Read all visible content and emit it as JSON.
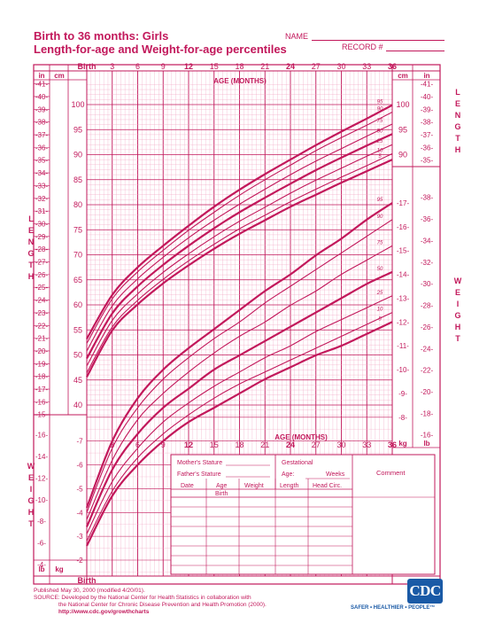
{
  "header": {
    "title_line1": "Birth to 36 months: Girls",
    "title_line2": "Length-for-age and Weight-for-age percentiles",
    "name_label": "NAME",
    "record_label": "RECORD #"
  },
  "labels": {
    "birth": "Birth",
    "cm": "cm",
    "in": "in",
    "kg": "kg",
    "lb": "lb",
    "age_months": "AGE (MONTHS)",
    "length_word": "LENGTH",
    "weight_word": "WEIGHT"
  },
  "table": {
    "mother_stature": "Mother's Stature",
    "father_stature": "Father's Stature",
    "gestational": "Gestational",
    "age_label": "Age:",
    "weeks_label": "Weeks",
    "comment": "Comment",
    "col_date": "Date",
    "col_age": "Age",
    "col_weight": "Weight",
    "col_length": "Length",
    "col_head": "Head  Circ.",
    "row_birth": "Birth"
  },
  "footer": {
    "line1": "Published May 30, 2000 (modified 4/20/01).",
    "line2": "SOURCE: Developed by the National Center for Health Statistics in collaboration with",
    "line3": "the National Center for Chronic Disease Prevention and Health Promotion (2000).",
    "line4": "http://www.cdc.gov/growthcharts",
    "logo_text": "CDC",
    "logo_tagline": "SAFER • HEALTHIER • PEOPLE™"
  },
  "chart_data": {
    "type": "line",
    "title": "Birth to 36 months: Girls — Length-for-age and Weight-for-age percentiles",
    "x": [
      0,
      3,
      6,
      9,
      12,
      15,
      18,
      21,
      24,
      27,
      30,
      33,
      36
    ],
    "x_tick_labels": [
      "Birth",
      "3",
      "6",
      "9",
      "12",
      "15",
      "18",
      "21",
      "24",
      "27",
      "30",
      "33",
      "36"
    ],
    "xlabel": "AGE (MONTHS)",
    "xlim": [
      0,
      36
    ],
    "grid": true,
    "length_panel": {
      "ylabel": "LENGTH",
      "unit": "cm",
      "ylim_cm": [
        37.5,
        104.5
      ],
      "cm_ticks": [
        40,
        45,
        50,
        55,
        60,
        65,
        70,
        75,
        80,
        85,
        90,
        95,
        100
      ],
      "in_ticks": [
        15,
        16,
        17,
        18,
        19,
        20,
        21,
        22,
        23,
        24,
        25,
        26,
        27,
        28,
        29,
        30,
        31,
        32,
        33,
        34,
        35,
        36,
        37,
        38,
        39,
        40,
        41
      ],
      "series": [
        {
          "name": "95",
          "values": [
            53.2,
            62.0,
            67.5,
            71.8,
            75.8,
            79.6,
            83.0,
            86.1,
            89.0,
            91.9,
            94.6,
            97.2,
            99.9
          ]
        },
        {
          "name": "90",
          "values": [
            52.3,
            61.2,
            66.6,
            70.9,
            74.9,
            78.5,
            81.9,
            85.0,
            87.9,
            90.8,
            93.4,
            95.9,
            98.5
          ]
        },
        {
          "name": "75",
          "values": [
            50.8,
            59.8,
            65.2,
            69.5,
            73.4,
            76.9,
            80.1,
            83.1,
            86.0,
            88.7,
            91.2,
            93.7,
            96.1
          ]
        },
        {
          "name": "50",
          "values": [
            49.3,
            58.3,
            63.7,
            68.0,
            71.8,
            75.3,
            78.5,
            81.4,
            84.2,
            86.9,
            89.4,
            91.8,
            94.1
          ]
        },
        {
          "name": "25",
          "values": [
            47.8,
            56.9,
            62.2,
            66.5,
            70.2,
            73.6,
            76.7,
            79.5,
            82.3,
            84.9,
            87.3,
            89.7,
            92.0
          ]
        },
        {
          "name": "10",
          "values": [
            46.4,
            55.6,
            60.9,
            65.1,
            68.8,
            72.1,
            75.2,
            77.9,
            80.6,
            83.1,
            85.5,
            87.8,
            90.2
          ]
        },
        {
          "name": "5",
          "values": [
            45.6,
            54.9,
            60.1,
            64.3,
            67.9,
            71.2,
            74.2,
            76.9,
            79.6,
            82.0,
            84.4,
            86.7,
            89.0
          ]
        }
      ]
    },
    "weight_panel": {
      "ylabel": "WEIGHT",
      "unit": "kg",
      "ylim_kg": [
        1.5,
        18.0
      ],
      "kg_ticks": [
        2,
        3,
        4,
        5,
        6,
        7,
        8,
        9,
        10,
        11,
        12,
        13,
        14,
        15,
        16,
        17
      ],
      "lb_ticks": [
        4,
        6,
        8,
        10,
        12,
        14,
        16,
        18,
        20,
        22,
        24,
        26,
        28,
        30,
        32,
        34,
        36,
        38
      ],
      "series": [
        {
          "name": "95",
          "values": [
            4.2,
            7.0,
            8.8,
            10.0,
            10.9,
            11.7,
            12.5,
            13.3,
            14.0,
            14.8,
            15.5,
            16.3,
            17.0
          ]
        },
        {
          "name": "90",
          "values": [
            4.0,
            6.7,
            8.4,
            9.6,
            10.5,
            11.3,
            12.0,
            12.8,
            13.5,
            14.2,
            14.9,
            15.6,
            16.3
          ]
        },
        {
          "name": "75",
          "values": [
            3.7,
            6.2,
            7.9,
            9.0,
            9.9,
            10.7,
            11.4,
            12.0,
            12.7,
            13.3,
            14.0,
            14.6,
            15.2
          ]
        },
        {
          "name": "50",
          "values": [
            3.4,
            5.8,
            7.3,
            8.4,
            9.2,
            10.0,
            10.6,
            11.2,
            11.8,
            12.4,
            13.0,
            13.6,
            14.1
          ]
        },
        {
          "name": "25",
          "values": [
            3.1,
            5.3,
            6.7,
            7.8,
            8.6,
            9.3,
            9.9,
            10.5,
            11.0,
            11.6,
            12.1,
            12.6,
            13.1
          ]
        },
        {
          "name": "10",
          "values": [
            2.8,
            4.9,
            6.3,
            7.3,
            8.1,
            8.8,
            9.4,
            9.9,
            10.4,
            10.9,
            11.4,
            11.9,
            12.4
          ]
        },
        {
          "name": "5",
          "values": [
            2.6,
            4.7,
            6.0,
            7.0,
            7.8,
            8.4,
            9.0,
            9.6,
            10.1,
            10.6,
            11.0,
            11.5,
            12.0
          ]
        }
      ]
    }
  }
}
